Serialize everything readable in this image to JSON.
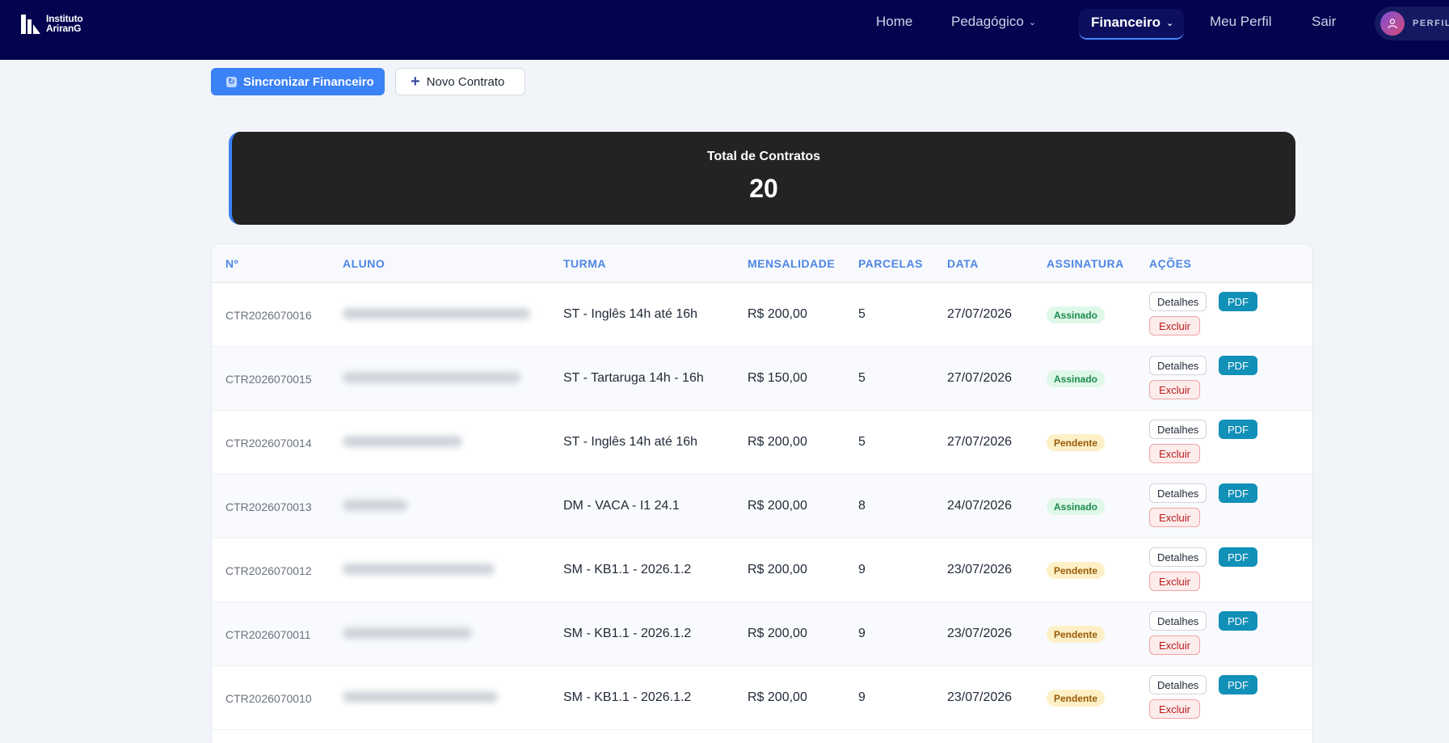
{
  "brand": {
    "line1": "Instituto",
    "line2": "AriranG"
  },
  "nav": {
    "home": "Home",
    "pedagogico": "Pedagógico",
    "financeiro": "Financeiro",
    "meu_perfil": "Meu Perfil",
    "sair": "Sair",
    "profile_label": "PERFIL"
  },
  "actions": {
    "sync_label": "Sincronizar Financeiro",
    "new_label": "Novo Contrato"
  },
  "stat": {
    "title": "Total de Contratos",
    "value": "20"
  },
  "table": {
    "headers": [
      "Nº",
      "ALUNO",
      "TURMA",
      "MENSALIDADE",
      "PARCELAS",
      "DATA",
      "ASSINATURA",
      "AÇÕES"
    ],
    "action_labels": {
      "details": "Detalhes",
      "pdf": "PDF",
      "delete": "Excluir"
    },
    "rows": [
      {
        "num": "CTR2026070016",
        "turma": "ST - Inglês 14h até 16h",
        "mensalidade": "R$ 200,00",
        "parcelas": "5",
        "data": "27/07/2026",
        "assinatura": "Assinado",
        "status": "ok"
      },
      {
        "num": "CTR2026070015",
        "turma": "ST - Tartaruga 14h - 16h",
        "mensalidade": "R$ 150,00",
        "parcelas": "5",
        "data": "27/07/2026",
        "assinatura": "Assinado",
        "status": "ok"
      },
      {
        "num": "CTR2026070014",
        "turma": "ST - Inglês 14h até 16h",
        "mensalidade": "R$ 200,00",
        "parcelas": "5",
        "data": "27/07/2026",
        "assinatura": "Pendente",
        "status": "pend"
      },
      {
        "num": "CTR2026070013",
        "turma": "DM - VACA - I1 24.1",
        "mensalidade": "R$ 200,00",
        "parcelas": "8",
        "data": "24/07/2026",
        "assinatura": "Assinado",
        "status": "ok"
      },
      {
        "num": "CTR2026070012",
        "turma": "SM - KB1.1 - 2026.1.2",
        "mensalidade": "R$ 200,00",
        "parcelas": "9",
        "data": "23/07/2026",
        "assinatura": "Pendente",
        "status": "pend"
      },
      {
        "num": "CTR2026070011",
        "turma": "SM - KB1.1 - 2026.1.2",
        "mensalidade": "R$ 200,00",
        "parcelas": "9",
        "data": "23/07/2026",
        "assinatura": "Pendente",
        "status": "pend"
      },
      {
        "num": "CTR2026070010",
        "turma": "SM - KB1.1 - 2026.1.2",
        "mensalidade": "R$ 200,00",
        "parcelas": "9",
        "data": "23/07/2026",
        "assinatura": "Pendente",
        "status": "pend"
      }
    ]
  },
  "colors": {
    "topbar": "#03034f",
    "accent": "#3b82f6",
    "signed": "#1c8a4b",
    "pending": "#9a5a05",
    "danger": "#b91c1c"
  }
}
